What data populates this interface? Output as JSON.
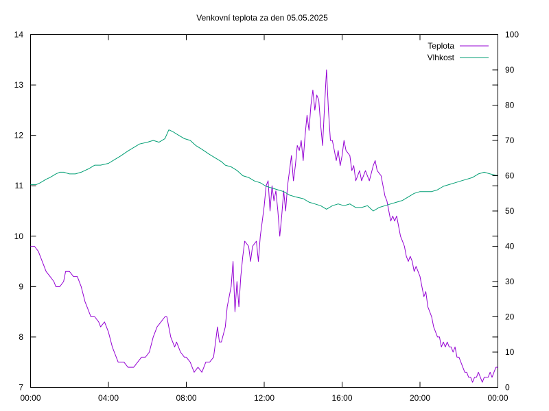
{
  "chart_data": {
    "type": "line",
    "title": "Venkovní teplota za den 05.05.2025",
    "xlabel": "",
    "ylabel": "",
    "y2label": "",
    "x_ticks": [
      "00:00",
      "04:00",
      "08:00",
      "12:00",
      "16:00",
      "20:00",
      "00:00"
    ],
    "x_range_hours": [
      0,
      24
    ],
    "ylim_left": [
      7,
      14
    ],
    "yticks_left": [
      "7",
      "8",
      "9",
      "10",
      "11",
      "12",
      "13",
      "14"
    ],
    "ylim_right": [
      0,
      100
    ],
    "yticks_right": [
      "0",
      "10",
      "20",
      "30",
      "40",
      "50",
      "60",
      "70",
      "80",
      "90",
      "100"
    ],
    "grid": false,
    "legend_position": "top-right",
    "series": [
      {
        "name": "Teplota",
        "axis": "left",
        "color": "#9400d3",
        "points": [
          [
            0,
            9.8
          ],
          [
            0.2,
            9.8
          ],
          [
            0.4,
            9.7
          ],
          [
            0.6,
            9.5
          ],
          [
            0.8,
            9.3
          ],
          [
            1.0,
            9.2
          ],
          [
            1.2,
            9.1
          ],
          [
            1.3,
            9.0
          ],
          [
            1.5,
            9.0
          ],
          [
            1.7,
            9.1
          ],
          [
            1.8,
            9.3
          ],
          [
            2.0,
            9.3
          ],
          [
            2.2,
            9.2
          ],
          [
            2.4,
            9.2
          ],
          [
            2.6,
            9.0
          ],
          [
            2.8,
            8.7
          ],
          [
            2.9,
            8.6
          ],
          [
            3.1,
            8.4
          ],
          [
            3.3,
            8.4
          ],
          [
            3.5,
            8.3
          ],
          [
            3.6,
            8.2
          ],
          [
            3.8,
            8.3
          ],
          [
            4.0,
            8.1
          ],
          [
            4.2,
            7.8
          ],
          [
            4.4,
            7.6
          ],
          [
            4.5,
            7.5
          ],
          [
            4.8,
            7.5
          ],
          [
            5.0,
            7.4
          ],
          [
            5.3,
            7.4
          ],
          [
            5.5,
            7.5
          ],
          [
            5.7,
            7.6
          ],
          [
            5.9,
            7.6
          ],
          [
            6.1,
            7.7
          ],
          [
            6.3,
            8.0
          ],
          [
            6.5,
            8.2
          ],
          [
            6.7,
            8.3
          ],
          [
            6.9,
            8.4
          ],
          [
            7.0,
            8.4
          ],
          [
            7.2,
            8.0
          ],
          [
            7.4,
            7.8
          ],
          [
            7.5,
            7.9
          ],
          [
            7.7,
            7.7
          ],
          [
            7.9,
            7.6
          ],
          [
            8.0,
            7.6
          ],
          [
            8.2,
            7.5
          ],
          [
            8.4,
            7.3
          ],
          [
            8.6,
            7.4
          ],
          [
            8.8,
            7.3
          ],
          [
            9.0,
            7.5
          ],
          [
            9.2,
            7.5
          ],
          [
            9.4,
            7.6
          ],
          [
            9.5,
            7.9
          ],
          [
            9.6,
            8.2
          ],
          [
            9.7,
            7.9
          ],
          [
            9.8,
            7.9
          ],
          [
            10.0,
            8.2
          ],
          [
            10.1,
            8.6
          ],
          [
            10.3,
            9.0
          ],
          [
            10.4,
            9.5
          ],
          [
            10.5,
            8.5
          ],
          [
            10.6,
            9.1
          ],
          [
            10.7,
            8.6
          ],
          [
            10.8,
            9.2
          ],
          [
            10.9,
            9.6
          ],
          [
            11.0,
            9.9
          ],
          [
            11.2,
            9.8
          ],
          [
            11.3,
            9.5
          ],
          [
            11.4,
            9.8
          ],
          [
            11.6,
            9.9
          ],
          [
            11.7,
            9.5
          ],
          [
            11.8,
            10.0
          ],
          [
            11.9,
            10.3
          ],
          [
            12.0,
            10.6
          ],
          [
            12.1,
            11.0
          ],
          [
            12.2,
            11.1
          ],
          [
            12.3,
            10.5
          ],
          [
            12.4,
            11.0
          ],
          [
            12.5,
            10.7
          ],
          [
            12.6,
            10.9
          ],
          [
            12.7,
            10.5
          ],
          [
            12.8,
            10.0
          ],
          [
            12.9,
            10.4
          ],
          [
            13.0,
            10.9
          ],
          [
            13.1,
            10.5
          ],
          [
            13.2,
            11.0
          ],
          [
            13.3,
            11.3
          ],
          [
            13.4,
            11.6
          ],
          [
            13.5,
            11.1
          ],
          [
            13.6,
            11.4
          ],
          [
            13.7,
            11.8
          ],
          [
            13.8,
            11.7
          ],
          [
            13.9,
            11.9
          ],
          [
            14.0,
            11.5
          ],
          [
            14.1,
            12.0
          ],
          [
            14.2,
            12.4
          ],
          [
            14.3,
            12.1
          ],
          [
            14.4,
            12.6
          ],
          [
            14.5,
            12.9
          ],
          [
            14.6,
            12.5
          ],
          [
            14.7,
            12.8
          ],
          [
            14.8,
            12.7
          ],
          [
            14.9,
            12.2
          ],
          [
            15.0,
            11.8
          ],
          [
            15.1,
            12.6
          ],
          [
            15.2,
            13.3
          ],
          [
            15.3,
            12.5
          ],
          [
            15.4,
            11.9
          ],
          [
            15.5,
            11.9
          ],
          [
            15.6,
            11.7
          ],
          [
            15.7,
            11.5
          ],
          [
            15.8,
            11.7
          ],
          [
            15.9,
            11.4
          ],
          [
            16.0,
            11.6
          ],
          [
            16.1,
            11.9
          ],
          [
            16.2,
            11.7
          ],
          [
            16.4,
            11.6
          ],
          [
            16.5,
            11.3
          ],
          [
            16.6,
            11.4
          ],
          [
            16.7,
            11.1
          ],
          [
            16.9,
            11.3
          ],
          [
            17.0,
            11.1
          ],
          [
            17.2,
            11.3
          ],
          [
            17.4,
            11.1
          ],
          [
            17.6,
            11.4
          ],
          [
            17.7,
            11.5
          ],
          [
            17.8,
            11.3
          ],
          [
            18.0,
            11.2
          ],
          [
            18.1,
            11.0
          ],
          [
            18.2,
            10.8
          ],
          [
            18.3,
            10.7
          ],
          [
            18.4,
            10.5
          ],
          [
            18.5,
            10.3
          ],
          [
            18.6,
            10.4
          ],
          [
            18.7,
            10.3
          ],
          [
            18.8,
            10.4
          ],
          [
            18.9,
            10.2
          ],
          [
            19.0,
            10.0
          ],
          [
            19.1,
            9.9
          ],
          [
            19.2,
            9.8
          ],
          [
            19.3,
            9.6
          ],
          [
            19.4,
            9.5
          ],
          [
            19.5,
            9.6
          ],
          [
            19.6,
            9.5
          ],
          [
            19.7,
            9.3
          ],
          [
            19.8,
            9.4
          ],
          [
            19.9,
            9.3
          ],
          [
            20.0,
            9.2
          ],
          [
            20.1,
            9.0
          ],
          [
            20.2,
            8.8
          ],
          [
            20.3,
            8.9
          ],
          [
            20.4,
            8.6
          ],
          [
            20.5,
            8.5
          ],
          [
            20.6,
            8.4
          ],
          [
            20.7,
            8.2
          ],
          [
            20.8,
            8.1
          ],
          [
            20.9,
            8.0
          ],
          [
            21.0,
            8.0
          ],
          [
            21.1,
            7.8
          ],
          [
            21.2,
            7.9
          ],
          [
            21.3,
            7.8
          ],
          [
            21.4,
            7.9
          ],
          [
            21.5,
            7.8
          ],
          [
            21.6,
            7.8
          ],
          [
            21.7,
            7.7
          ],
          [
            21.8,
            7.8
          ],
          [
            21.9,
            7.6
          ],
          [
            22.0,
            7.6
          ],
          [
            22.1,
            7.5
          ],
          [
            22.2,
            7.4
          ],
          [
            22.3,
            7.3
          ],
          [
            22.4,
            7.3
          ],
          [
            22.5,
            7.2
          ],
          [
            22.6,
            7.2
          ],
          [
            22.7,
            7.1
          ],
          [
            22.8,
            7.2
          ],
          [
            22.9,
            7.2
          ],
          [
            23.0,
            7.3
          ],
          [
            23.1,
            7.2
          ],
          [
            23.2,
            7.1
          ],
          [
            23.3,
            7.2
          ],
          [
            23.4,
            7.2
          ],
          [
            23.5,
            7.2
          ],
          [
            23.6,
            7.3
          ],
          [
            23.7,
            7.2
          ],
          [
            23.8,
            7.3
          ],
          [
            23.9,
            7.4
          ],
          [
            24.0,
            7.4
          ]
        ]
      },
      {
        "name": "Vlhkost",
        "axis": "right",
        "color": "#009e73",
        "points": [
          [
            0,
            57.5
          ],
          [
            0.3,
            57.5
          ],
          [
            0.5,
            58
          ],
          [
            0.8,
            59
          ],
          [
            1.0,
            59.5
          ],
          [
            1.3,
            60.5
          ],
          [
            1.5,
            61
          ],
          [
            1.7,
            61
          ],
          [
            2.0,
            60.5
          ],
          [
            2.3,
            60.5
          ],
          [
            2.6,
            61
          ],
          [
            3.0,
            62
          ],
          [
            3.3,
            63
          ],
          [
            3.6,
            63
          ],
          [
            4.0,
            63.5
          ],
          [
            4.3,
            64.5
          ],
          [
            4.6,
            65.5
          ],
          [
            5.0,
            67
          ],
          [
            5.3,
            68
          ],
          [
            5.6,
            69
          ],
          [
            6.0,
            69.5
          ],
          [
            6.3,
            70
          ],
          [
            6.6,
            69.5
          ],
          [
            6.9,
            70.5
          ],
          [
            7.1,
            73
          ],
          [
            7.3,
            72.5
          ],
          [
            7.6,
            71.5
          ],
          [
            7.9,
            70.5
          ],
          [
            8.2,
            70
          ],
          [
            8.5,
            68.5
          ],
          [
            8.8,
            67.5
          ],
          [
            9.2,
            66
          ],
          [
            9.5,
            65
          ],
          [
            9.8,
            64
          ],
          [
            10.0,
            63
          ],
          [
            10.3,
            62.5
          ],
          [
            10.6,
            61.5
          ],
          [
            10.9,
            60
          ],
          [
            11.2,
            59.5
          ],
          [
            11.5,
            58.5
          ],
          [
            11.8,
            58
          ],
          [
            12.1,
            57
          ],
          [
            12.4,
            56.5
          ],
          [
            12.7,
            56
          ],
          [
            13.0,
            55.5
          ],
          [
            13.3,
            54.5
          ],
          [
            13.6,
            54
          ],
          [
            14.0,
            53.5
          ],
          [
            14.3,
            52.5
          ],
          [
            14.6,
            52
          ],
          [
            14.9,
            51.5
          ],
          [
            15.2,
            50.5
          ],
          [
            15.5,
            51.5
          ],
          [
            15.8,
            52
          ],
          [
            16.1,
            51.5
          ],
          [
            16.4,
            52
          ],
          [
            16.7,
            51
          ],
          [
            17.0,
            51
          ],
          [
            17.3,
            51.5
          ],
          [
            17.6,
            50
          ],
          [
            17.9,
            51
          ],
          [
            18.2,
            51.5
          ],
          [
            18.5,
            52
          ],
          [
            18.8,
            52.5
          ],
          [
            19.1,
            53
          ],
          [
            19.4,
            54
          ],
          [
            19.7,
            55
          ],
          [
            20.0,
            55.5
          ],
          [
            20.3,
            55.5
          ],
          [
            20.6,
            55.5
          ],
          [
            20.9,
            56
          ],
          [
            21.2,
            57
          ],
          [
            21.5,
            57.5
          ],
          [
            21.8,
            58
          ],
          [
            22.1,
            58.5
          ],
          [
            22.4,
            59
          ],
          [
            22.7,
            59.5
          ],
          [
            23.0,
            60.5
          ],
          [
            23.3,
            61
          ],
          [
            23.6,
            60.5
          ],
          [
            24.0,
            60
          ]
        ]
      }
    ]
  }
}
